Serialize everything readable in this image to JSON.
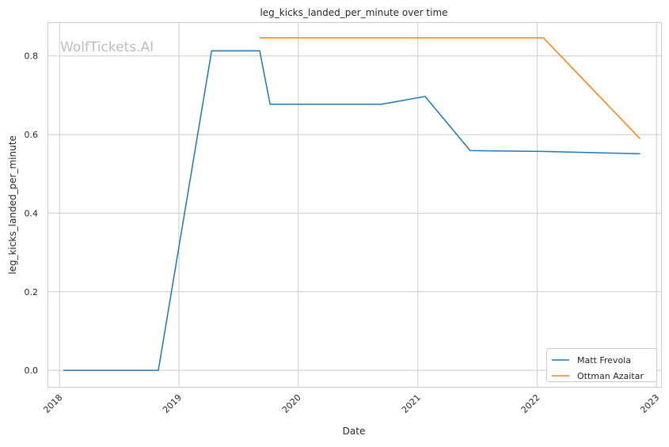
{
  "chart_data": {
    "type": "line",
    "title": "leg_kicks_landed_per_minute over time",
    "xlabel": "Date",
    "ylabel": "leg_kicks_landed_per_minute",
    "watermark": "WolfTickets.AI",
    "xlim": [
      "2017-11-25",
      "2023-01-15"
    ],
    "ylim": [
      -0.042,
      0.886
    ],
    "x_ticks": [
      "2018",
      "2019",
      "2020",
      "2021",
      "2022",
      "2023"
    ],
    "y_ticks": [
      "0.0",
      "0.2",
      "0.4",
      "0.6",
      "0.8"
    ],
    "grid": true,
    "legend_position": "bottom-right",
    "series": [
      {
        "name": "Matt Frevola",
        "color": "#1f77b4",
        "x": [
          "2018-01-13",
          "2018-10-30",
          "2019-04-11",
          "2019-09-05",
          "2019-10-07",
          "2020-09-12",
          "2021-01-23",
          "2021-06-10",
          "2022-01-15",
          "2022-11-12"
        ],
        "y": [
          0.0,
          0.0,
          0.813,
          0.813,
          0.677,
          0.677,
          0.697,
          0.559,
          0.557,
          0.551
        ]
      },
      {
        "name": "Ottman Azaitar",
        "color": "#ff7f0e",
        "x": [
          "2019-09-05",
          "2022-01-20",
          "2022-11-12"
        ],
        "y": [
          0.846,
          0.846,
          0.589
        ]
      }
    ]
  }
}
